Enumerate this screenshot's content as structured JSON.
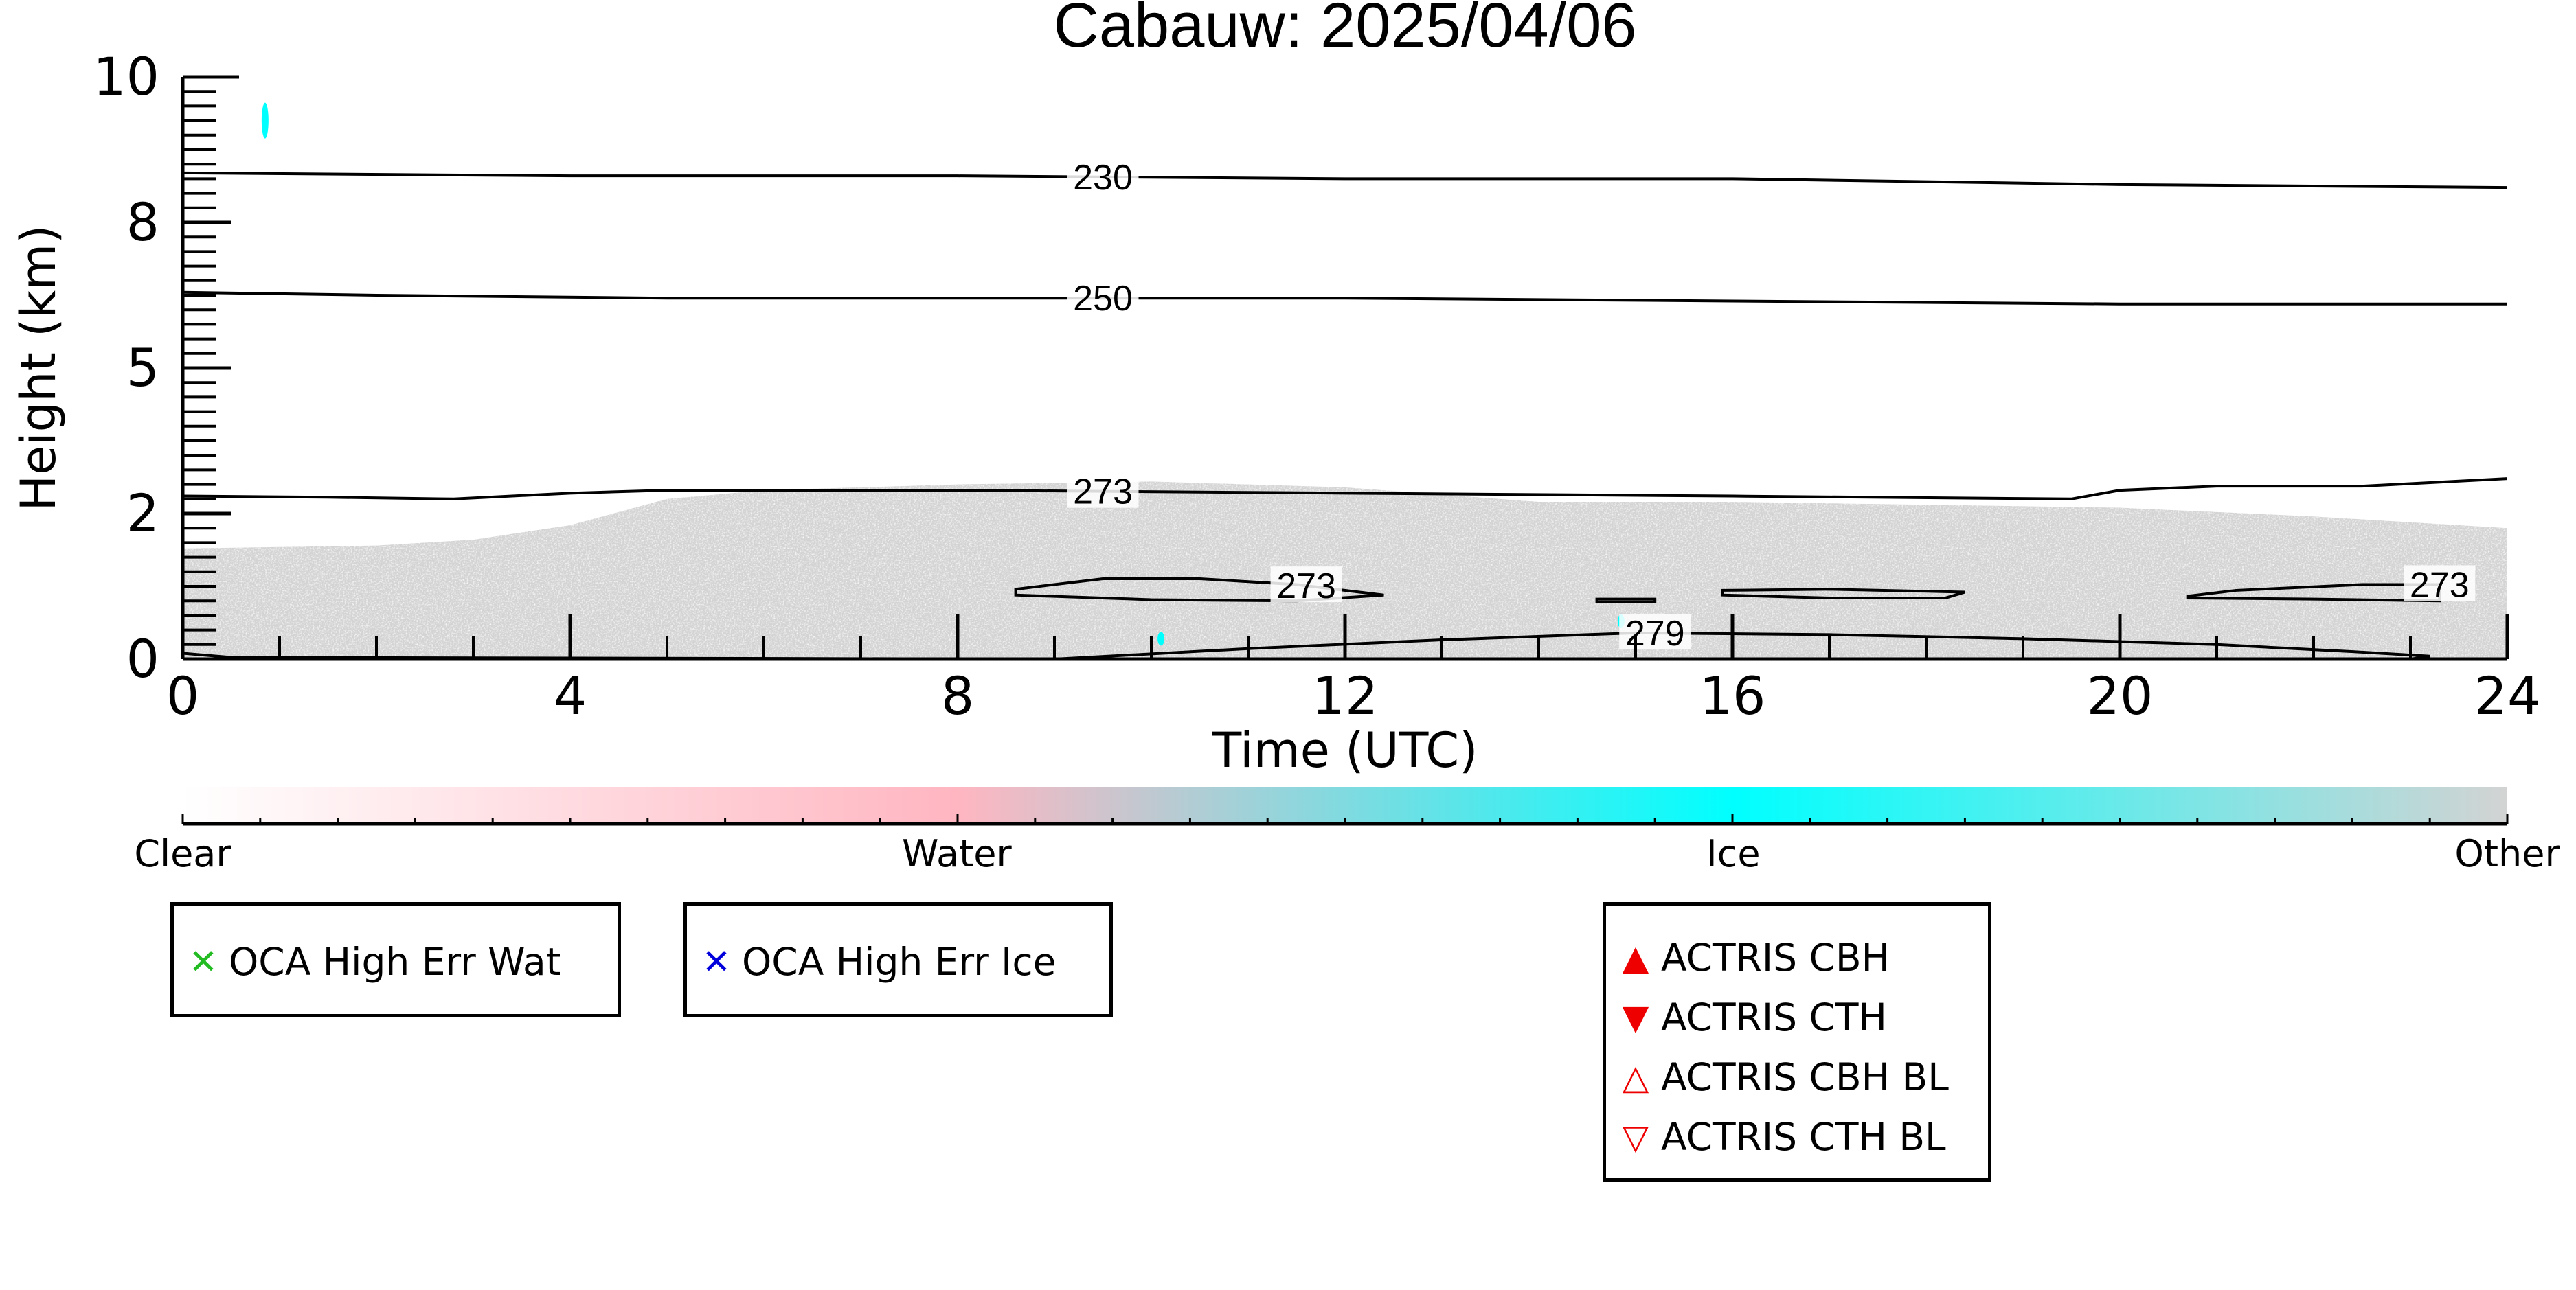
{
  "chart_data": {
    "type": "heatmap",
    "title": "Cabauw: 2025/04/06",
    "xlabel": "Time (UTC)",
    "ylabel": "Height (km)",
    "xlim": [
      0,
      24
    ],
    "ylim": [
      0,
      10
    ],
    "x_ticks": [
      "0",
      "4",
      "8",
      "12",
      "16",
      "20",
      "24"
    ],
    "x_tick_values": [
      0,
      4,
      8,
      12,
      16,
      20,
      24
    ],
    "y_ticks": [
      "0",
      "2",
      "5",
      "8",
      "10"
    ],
    "y_tick_values": [
      0,
      2.5,
      5,
      7.5,
      10
    ],
    "grid": false,
    "colorbar": {
      "labels": [
        "Clear",
        "Water",
        "Ice",
        "Other"
      ],
      "label_positions": [
        0,
        0.333,
        0.667,
        1.0
      ],
      "colors": [
        "#ffffff",
        "#ffb6c1",
        "#00ffff",
        "#d3d3d3"
      ]
    },
    "regions": [
      {
        "category": "Other",
        "color": "#d3d3d3",
        "top": [
          [
            0,
            1.9
          ],
          [
            2,
            1.95
          ],
          [
            3,
            2.05
          ],
          [
            4,
            2.3
          ],
          [
            5,
            2.75
          ],
          [
            6,
            2.9
          ],
          [
            8,
            3.0
          ],
          [
            10,
            3.05
          ],
          [
            12,
            2.95
          ],
          [
            14,
            2.7
          ],
          [
            16,
            2.7
          ],
          [
            18,
            2.65
          ],
          [
            20,
            2.6
          ],
          [
            22,
            2.45
          ],
          [
            24,
            2.25
          ]
        ]
      },
      {
        "category": "Ice",
        "color": "#00ffff",
        "blobs": [
          {
            "x": 0.85,
            "y": 9.25
          },
          {
            "x": 14.85,
            "y": 0.65
          },
          {
            "x": 10.1,
            "y": 0.35
          }
        ]
      }
    ],
    "contours": [
      {
        "label": "230",
        "label_x": 9.5,
        "points": [
          [
            0,
            8.35
          ],
          [
            4,
            8.3
          ],
          [
            8,
            8.3
          ],
          [
            12,
            8.25
          ],
          [
            16,
            8.25
          ],
          [
            20,
            8.15
          ],
          [
            24,
            8.1
          ]
        ]
      },
      {
        "label": "250",
        "label_x": 9.5,
        "points": [
          [
            0,
            6.3
          ],
          [
            2,
            6.25
          ],
          [
            5,
            6.2
          ],
          [
            8,
            6.2
          ],
          [
            12,
            6.2
          ],
          [
            16,
            6.15
          ],
          [
            20,
            6.1
          ],
          [
            24,
            6.1
          ]
        ]
      },
      {
        "label": "273",
        "label_x": 9.5,
        "points": [
          [
            0,
            2.8
          ],
          [
            1.5,
            2.78
          ],
          [
            2.8,
            2.75
          ],
          [
            4,
            2.85
          ],
          [
            5,
            2.9
          ],
          [
            8,
            2.9
          ],
          [
            12,
            2.85
          ],
          [
            16,
            2.8
          ],
          [
            19.5,
            2.75
          ],
          [
            20,
            2.9
          ],
          [
            21,
            2.97
          ],
          [
            22.5,
            2.97
          ],
          [
            24,
            3.1
          ]
        ]
      },
      {
        "label": "273",
        "label_x": 11.6,
        "closed": true,
        "points": [
          [
            8.6,
            1.2
          ],
          [
            9.5,
            1.38
          ],
          [
            10.5,
            1.38
          ],
          [
            11.5,
            1.28
          ],
          [
            12.4,
            1.1
          ],
          [
            11.5,
            1.0
          ],
          [
            10,
            1.02
          ],
          [
            8.6,
            1.1
          ]
        ]
      },
      {
        "label": "",
        "closed": true,
        "points": [
          [
            14.6,
            1.03
          ],
          [
            15.2,
            1.03
          ],
          [
            15.2,
            0.98
          ],
          [
            14.6,
            0.98
          ]
        ]
      },
      {
        "label": "",
        "closed": true,
        "points": [
          [
            15.9,
            1.18
          ],
          [
            17,
            1.2
          ],
          [
            18.4,
            1.15
          ],
          [
            18.2,
            1.05
          ],
          [
            17,
            1.05
          ],
          [
            15.9,
            1.1
          ]
        ]
      },
      {
        "label": "273",
        "label_x": 23.3,
        "closed": true,
        "points": [
          [
            20.7,
            1.08
          ],
          [
            21.2,
            1.18
          ],
          [
            22.5,
            1.28
          ],
          [
            23.3,
            1.28
          ],
          [
            23.3,
            1.0
          ],
          [
            22,
            1.03
          ],
          [
            20.7,
            1.05
          ]
        ]
      },
      {
        "label": "279",
        "label_x": 15.2,
        "points": [
          [
            0,
            0.1
          ],
          [
            0.5,
            0.03
          ],
          [
            9,
            0.0
          ],
          [
            11,
            0.18
          ],
          [
            13,
            0.33
          ],
          [
            15,
            0.45
          ],
          [
            17,
            0.42
          ],
          [
            19,
            0.35
          ],
          [
            21,
            0.25
          ],
          [
            22.5,
            0.12
          ],
          [
            23.2,
            0.05
          ],
          [
            23,
            0.0
          ]
        ]
      }
    ]
  },
  "legends": {
    "oca_water": {
      "label": "OCA High Err Wat",
      "marker": "✕",
      "color": "#22bb22"
    },
    "oca_ice": {
      "label": "OCA High Err Ice",
      "marker": "✕",
      "color": "#0000dd"
    },
    "actris": [
      {
        "label": "ACTRIS CBH",
        "marker": "▲",
        "color": "#ee0000"
      },
      {
        "label": "ACTRIS CTH",
        "marker": "▼",
        "color": "#ee0000"
      },
      {
        "label": "ACTRIS CBH BL",
        "marker": "△",
        "color": "#ee0000"
      },
      {
        "label": "ACTRIS CTH BL",
        "marker": "▽",
        "color": "#ee0000"
      }
    ]
  }
}
